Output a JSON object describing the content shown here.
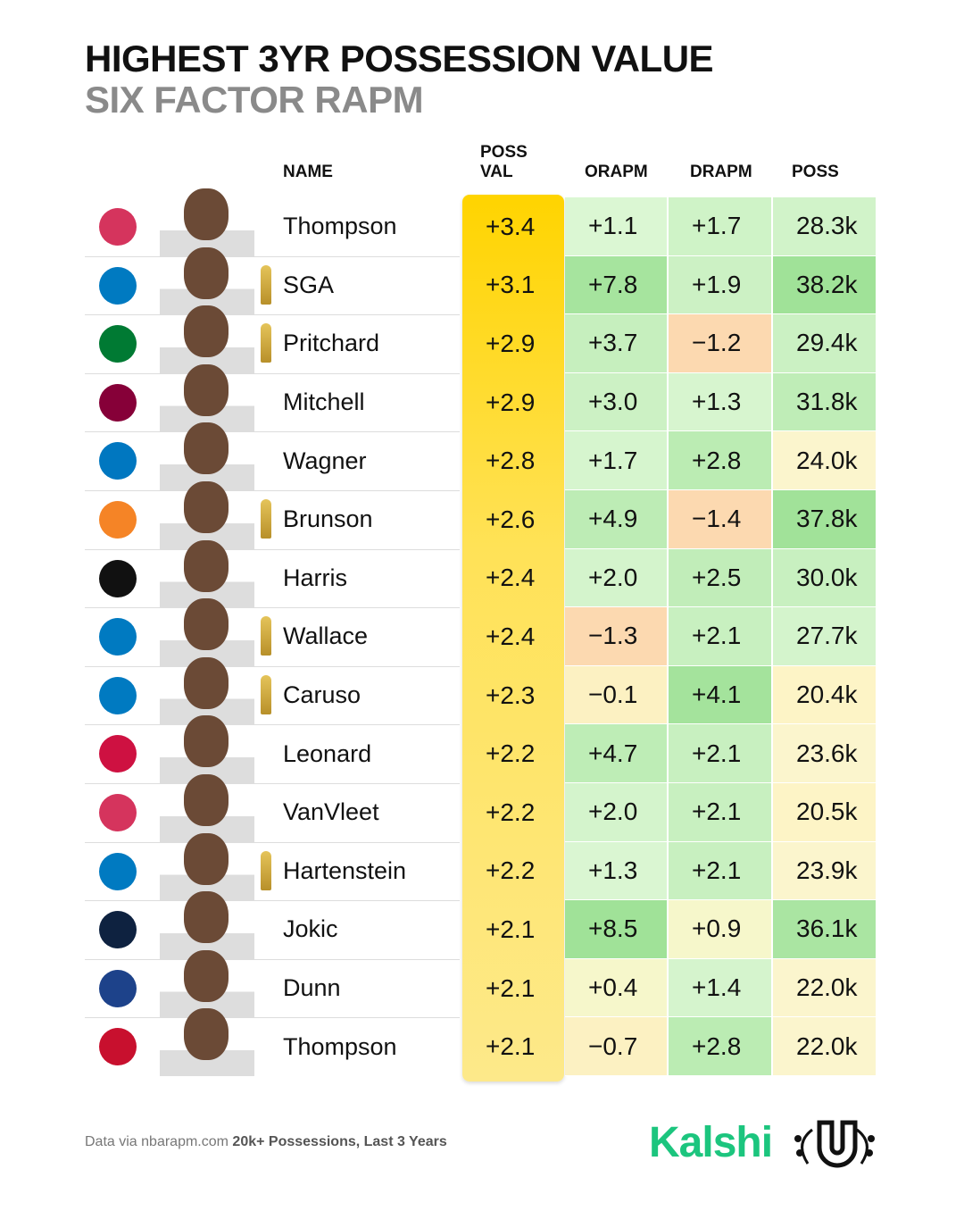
{
  "header": {
    "title": "HIGHEST 3YR POSSESSION VALUE",
    "subtitle": "SIX FACTOR RAPM"
  },
  "table": {
    "columns": [
      "NAME",
      "POSS VAL",
      "ORAPM",
      "DRAPM",
      "POSS"
    ],
    "rows": [
      [
        "Thompson",
        "+3.4",
        "+1.1",
        "+1.7",
        "28.3k"
      ],
      [
        "SGA",
        "+3.1",
        "+7.8",
        "+1.9",
        "38.2k"
      ],
      [
        "Pritchard",
        "+2.9",
        "+3.7",
        "−1.2",
        "29.4k"
      ],
      [
        "Mitchell",
        "+2.9",
        "+3.0",
        "+1.3",
        "31.8k"
      ],
      [
        "Wagner",
        "+2.8",
        "+1.7",
        "+2.8",
        "24.0k"
      ],
      [
        "Brunson",
        "+2.6",
        "+4.9",
        "−1.4",
        "37.8k"
      ],
      [
        "Harris",
        "+2.4",
        "+2.0",
        "+2.5",
        "30.0k"
      ],
      [
        "Wallace",
        "+2.4",
        "−1.3",
        "+2.1",
        "27.7k"
      ],
      [
        "Caruso",
        "+2.3",
        "−0.1",
        "+4.1",
        "20.4k"
      ],
      [
        "Leonard",
        "+2.2",
        "+4.7",
        "+2.1",
        "23.6k"
      ],
      [
        "VanVleet",
        "+2.2",
        "+2.0",
        "+2.1",
        "20.5k"
      ],
      [
        "Hartenstein",
        "+2.2",
        "+1.3",
        "+2.1",
        "23.9k"
      ],
      [
        "Jokic",
        "+2.1",
        "+8.5",
        "+0.9",
        "36.1k"
      ],
      [
        "Dunn",
        "+2.1",
        "+0.4",
        "+1.4",
        "22.0k"
      ],
      [
        "Thompson",
        "+2.1",
        "−0.7",
        "+2.8",
        "22.0k"
      ]
    ]
  },
  "footer": {
    "source": "Data via nbarapm.com",
    "note": "20k+ Possessions, Last 3 Years",
    "brand": "Kalshi"
  }
}
